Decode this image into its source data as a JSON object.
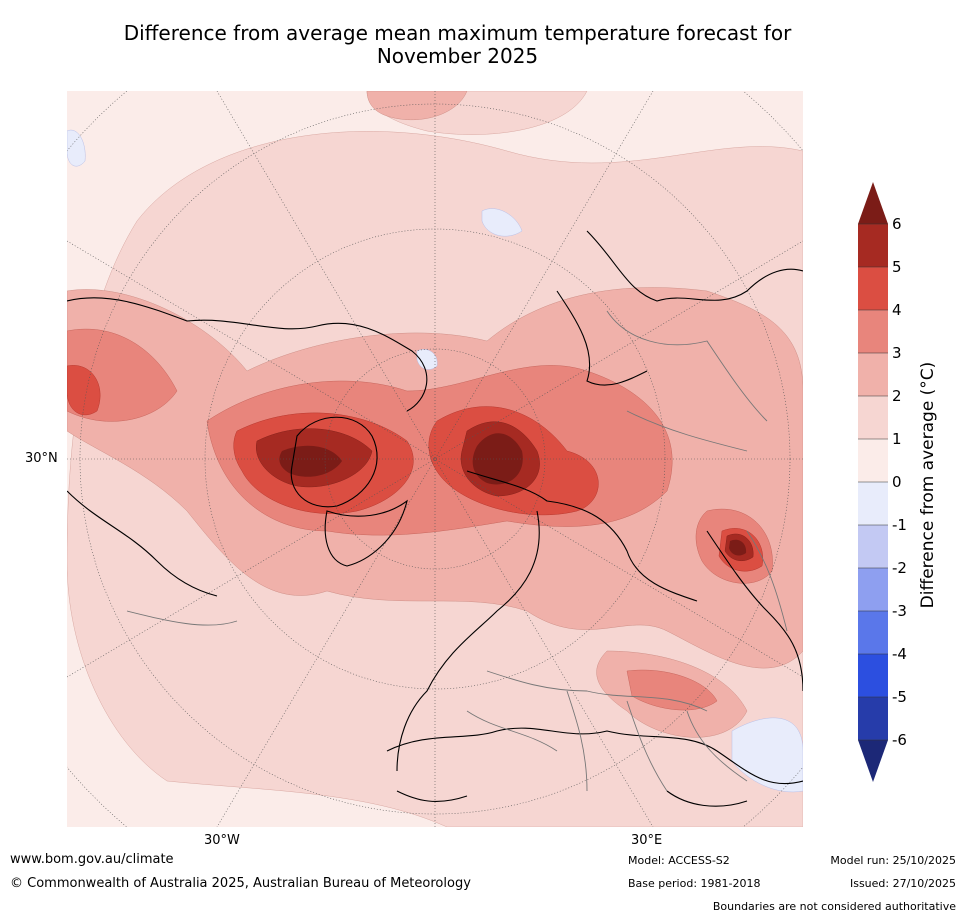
{
  "title_line1": "Difference from average mean maximum temperature forecast for",
  "title_line2": "November 2025",
  "axis_labels": {
    "lat_30n": "30°N",
    "lon_30w": "30°W",
    "lon_30e": "30°E"
  },
  "colorbar": {
    "label": "Difference from average (°C)",
    "ticks": [
      "6",
      "5",
      "4",
      "3",
      "2",
      "1",
      "0",
      "-1",
      "-2",
      "-3",
      "-4",
      "-5",
      "-6"
    ],
    "colors": {
      "over": "#7b1c17",
      "6_5": "#a62a22",
      "5_4": "#db4e42",
      "4_3": "#e8857c",
      "3_2": "#f0b1aa",
      "2_1": "#f6d6d2",
      "1_0": "#fbece9",
      "0_m1": "#e8ecfb",
      "m1_m2": "#c3c9f3",
      "m2_m3": "#8e9ff0",
      "m3_m4": "#5a77ea",
      "m4_m5": "#2c4fe0",
      "m5_m6": "#263caa",
      "under": "#1c2877"
    }
  },
  "footer": {
    "url": "www.bom.gov.au/climate",
    "copyright": "© Commonwealth of Australia 2025, Australian Bureau of Meteorology",
    "model": "Model: ACCESS-S2",
    "base_period": "Base period: 1981-2018",
    "model_run": "Model run: 25/10/2025",
    "issued": "Issued: 27/10/2025",
    "disclaimer": "Boundaries are not considered authoritative"
  }
}
